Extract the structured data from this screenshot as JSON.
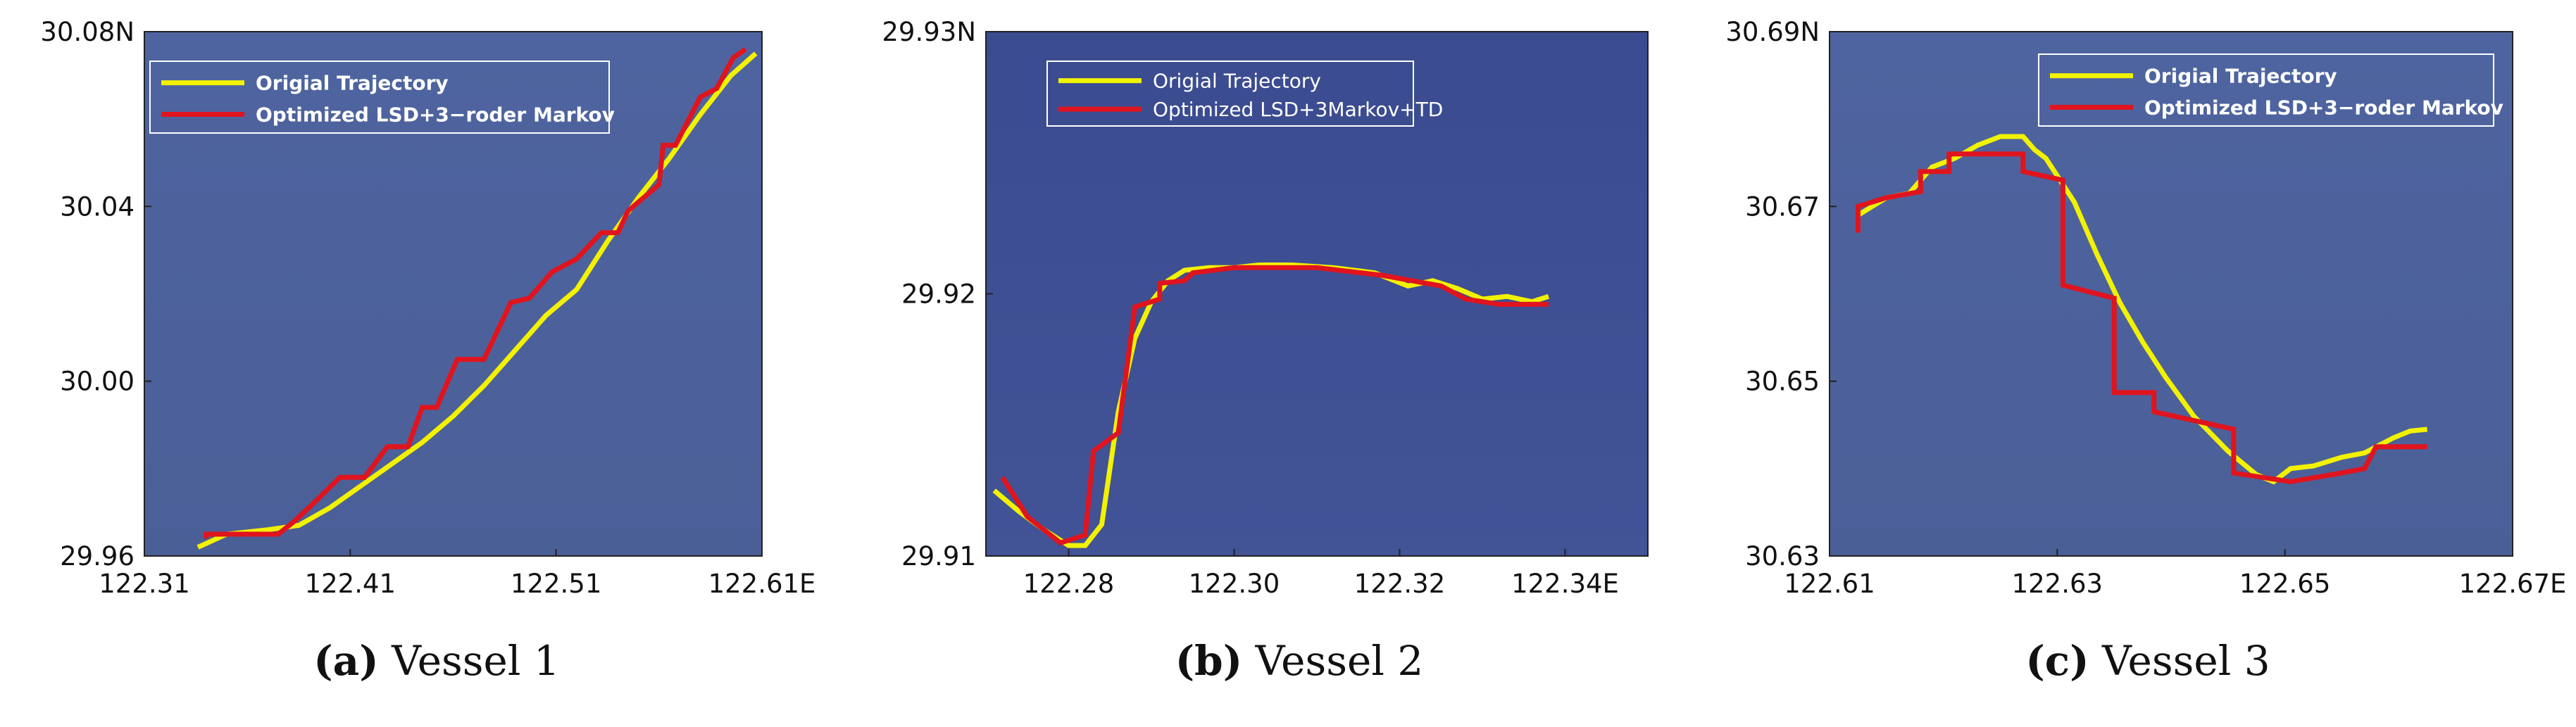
{
  "colors": {
    "plot_bg_a": "#4d629c",
    "plot_bg_b": "#3e4f92",
    "original": "#f2f200",
    "optimized": "#e0141e"
  },
  "charts": [
    {
      "type": "line",
      "caption": {
        "letter": "(a)",
        "text": "Vessel 1"
      },
      "legend": {
        "bold": true,
        "position": "top-left",
        "entries": [
          "Origial Trajectory",
          "Optimized LSD+3−roder Markov"
        ]
      },
      "xlim": [
        122.31,
        122.61
      ],
      "ylim": [
        29.96,
        30.08
      ],
      "xticks": [
        122.31,
        122.41,
        122.51,
        122.61
      ],
      "xtick_labels": [
        "122.31",
        "122.41",
        "122.51",
        "122.61E"
      ],
      "yticks": [
        29.96,
        30.0,
        30.04,
        30.08
      ],
      "ytick_labels": [
        "29.96",
        "30.00",
        "30.04",
        "30.08N"
      ],
      "series": [
        {
          "name": "Origial Trajectory",
          "color": "#f2f200",
          "points": [
            [
              122.336,
              29.962
            ],
            [
              122.35,
              29.965
            ],
            [
              122.37,
              29.966
            ],
            [
              122.385,
              29.967
            ],
            [
              122.4,
              29.971
            ],
            [
              122.415,
              29.976
            ],
            [
              122.43,
              29.981
            ],
            [
              122.445,
              29.986
            ],
            [
              122.46,
              29.992
            ],
            [
              122.475,
              29.999
            ],
            [
              122.49,
              30.007
            ],
            [
              122.505,
              30.015
            ],
            [
              122.52,
              30.021
            ],
            [
              122.535,
              30.032
            ],
            [
              122.55,
              30.042
            ],
            [
              122.565,
              30.051
            ],
            [
              122.58,
              30.061
            ],
            [
              122.595,
              30.07
            ],
            [
              122.607,
              30.075
            ]
          ]
        },
        {
          "name": "Optimized LSD+3−roder Markov",
          "color": "#e0141e",
          "points": [
            [
              122.34,
              29.964
            ],
            [
              122.34,
              29.965
            ],
            [
              122.375,
              29.965
            ],
            [
              122.383,
              29.968
            ],
            [
              122.392,
              29.972
            ],
            [
              122.405,
              29.978
            ],
            [
              122.417,
              29.978
            ],
            [
              122.428,
              29.985
            ],
            [
              122.438,
              29.985
            ],
            [
              122.445,
              29.994
            ],
            [
              122.452,
              29.994
            ],
            [
              122.462,
              30.005
            ],
            [
              122.475,
              30.005
            ],
            [
              122.488,
              30.018
            ],
            [
              122.497,
              30.019
            ],
            [
              122.508,
              30.025
            ],
            [
              122.52,
              30.028
            ],
            [
              122.532,
              30.034
            ],
            [
              122.54,
              30.034
            ],
            [
              122.545,
              30.039
            ],
            [
              122.56,
              30.045
            ],
            [
              122.562,
              30.054
            ],
            [
              122.568,
              30.054
            ],
            [
              122.58,
              30.065
            ],
            [
              122.588,
              30.067
            ],
            [
              122.596,
              30.074
            ],
            [
              122.602,
              30.076
            ]
          ]
        }
      ]
    },
    {
      "type": "line",
      "caption": {
        "letter": "(b)",
        "text": "Vessel 2"
      },
      "legend": {
        "bold": false,
        "position": "top-left",
        "entries": [
          "Origial Trajectory",
          "Optimized LSD+3Markov+TD"
        ]
      },
      "xlim": [
        122.27,
        122.35
      ],
      "ylim": [
        29.91,
        29.93
      ],
      "xticks": [
        122.28,
        122.3,
        122.32,
        122.34
      ],
      "xtick_labels": [
        "122.28",
        "122.30",
        "122.32",
        "122.34E"
      ],
      "yticks": [
        29.91,
        29.92,
        29.93
      ],
      "ytick_labels": [
        "29.91",
        "29.92",
        "29.93N"
      ],
      "series": [
        {
          "name": "Origial Trajectory",
          "color": "#f2f200",
          "points": [
            [
              122.271,
              29.9125
            ],
            [
              122.274,
              29.9117
            ],
            [
              122.277,
              29.911
            ],
            [
              122.28,
              29.9104
            ],
            [
              122.282,
              29.9104
            ],
            [
              122.284,
              29.9112
            ],
            [
              122.286,
              29.9155
            ],
            [
              122.288,
              29.9183
            ],
            [
              122.29,
              29.9197
            ],
            [
              122.292,
              29.9205
            ],
            [
              122.294,
              29.9209
            ],
            [
              122.297,
              29.921
            ],
            [
              122.3,
              29.921
            ],
            [
              122.303,
              29.9211
            ],
            [
              122.307,
              29.9211
            ],
            [
              122.312,
              29.921
            ],
            [
              122.317,
              29.9208
            ],
            [
              122.321,
              29.9203
            ],
            [
              122.324,
              29.9205
            ],
            [
              122.327,
              29.9202
            ],
            [
              122.33,
              29.9198
            ],
            [
              122.333,
              29.9199
            ],
            [
              122.336,
              29.9197
            ],
            [
              122.338,
              29.9199
            ]
          ]
        },
        {
          "name": "Optimized LSD+3Markov+TD",
          "color": "#e0141e",
          "points": [
            [
              122.272,
              29.913
            ],
            [
              122.275,
              29.9115
            ],
            [
              122.279,
              29.9105
            ],
            [
              122.282,
              29.9108
            ],
            [
              122.283,
              29.914
            ],
            [
              122.286,
              29.9147
            ],
            [
              122.288,
              29.9195
            ],
            [
              122.291,
              29.9198
            ],
            [
              122.291,
              29.9204
            ],
            [
              122.294,
              29.9205
            ],
            [
              122.295,
              29.9208
            ],
            [
              122.3,
              29.921
            ],
            [
              122.31,
              29.921
            ],
            [
              122.318,
              29.9207
            ],
            [
              122.325,
              29.9203
            ],
            [
              122.328,
              29.9198
            ],
            [
              122.332,
              29.9196
            ],
            [
              122.338,
              29.9196
            ]
          ]
        }
      ]
    },
    {
      "type": "line",
      "caption": {
        "letter": "(c)",
        "text": "Vessel 3"
      },
      "legend": {
        "bold": true,
        "position": "top-right",
        "entries": [
          "Origial Trajectory",
          "Optimized LSD+3−roder Markov"
        ]
      },
      "xlim": [
        122.61,
        122.67
      ],
      "ylim": [
        30.63,
        30.69
      ],
      "xticks": [
        122.61,
        122.63,
        122.65,
        122.67
      ],
      "xtick_labels": [
        "122.61",
        "122.63",
        "122.65",
        "122.67E"
      ],
      "yticks": [
        30.63,
        30.65,
        30.67,
        30.69
      ],
      "ytick_labels": [
        "30.63",
        "30.65",
        "30.67",
        "30.69N"
      ],
      "series": [
        {
          "name": "Origial Trajectory",
          "color": "#f2f200",
          "points": [
            [
              122.6125,
              30.669
            ],
            [
              122.615,
              30.671
            ],
            [
              122.617,
              30.6715
            ],
            [
              122.619,
              30.6745
            ],
            [
              122.621,
              30.6755
            ],
            [
              122.623,
              30.677
            ],
            [
              122.625,
              30.678
            ],
            [
              122.627,
              30.678
            ],
            [
              122.628,
              30.6765
            ],
            [
              122.629,
              30.6755
            ],
            [
              122.6315,
              30.6705
            ],
            [
              122.6335,
              30.6645
            ],
            [
              122.6355,
              30.659
            ],
            [
              122.6375,
              30.6545
            ],
            [
              122.6395,
              30.6505
            ],
            [
              122.642,
              30.646
            ],
            [
              122.645,
              30.642
            ],
            [
              122.6475,
              30.6393
            ],
            [
              122.649,
              30.6385
            ],
            [
              122.6505,
              30.64
            ],
            [
              122.6525,
              30.6403
            ],
            [
              122.655,
              30.6413
            ],
            [
              122.657,
              30.6418
            ],
            [
              122.6595,
              30.6435
            ],
            [
              122.661,
              30.6443
            ],
            [
              122.6625,
              30.6445
            ]
          ]
        },
        {
          "name": "Optimized LSD+3−roder Markov",
          "color": "#e0141e",
          "points": [
            [
              122.6125,
              30.667
            ],
            [
              122.6125,
              30.67
            ],
            [
              122.615,
              30.671
            ],
            [
              122.618,
              30.6717
            ],
            [
              122.618,
              30.674
            ],
            [
              122.6205,
              30.674
            ],
            [
              122.6205,
              30.676
            ],
            [
              122.627,
              30.676
            ],
            [
              122.627,
              30.674
            ],
            [
              122.6305,
              30.673
            ],
            [
              122.6305,
              30.661
            ],
            [
              122.635,
              30.6595
            ],
            [
              122.635,
              30.6487
            ],
            [
              122.6385,
              30.6487
            ],
            [
              122.6385,
              30.6465
            ],
            [
              122.6455,
              30.6445
            ],
            [
              122.6455,
              30.6395
            ],
            [
              122.6505,
              30.6385
            ],
            [
              122.655,
              30.6395
            ],
            [
              122.657,
              30.64
            ],
            [
              122.658,
              30.6425
            ],
            [
              122.6625,
              30.6425
            ]
          ]
        }
      ]
    }
  ]
}
